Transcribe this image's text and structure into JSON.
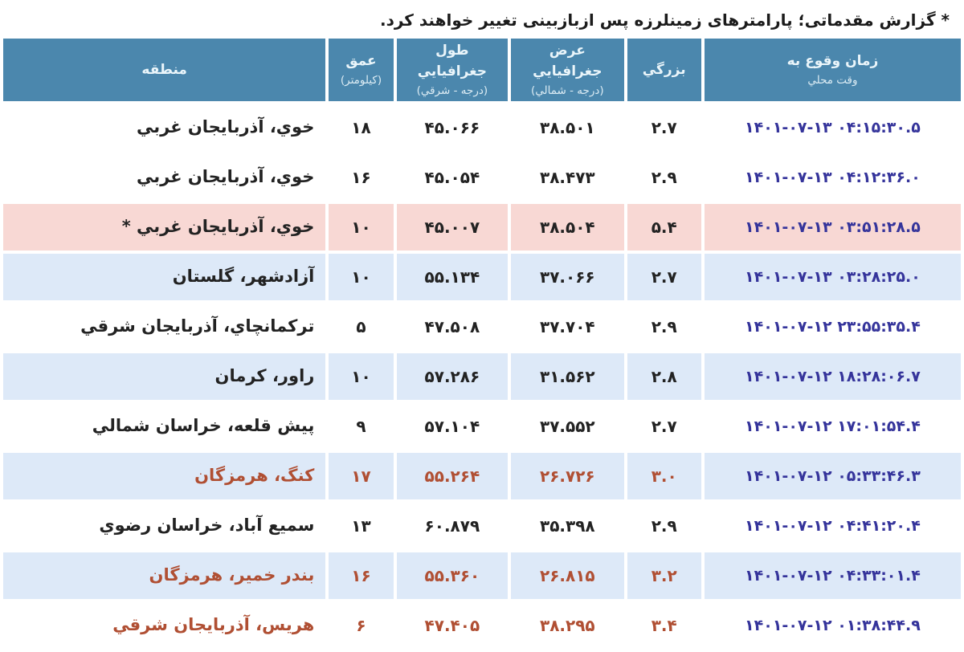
{
  "note": {
    "text": "* گزارش مقدماتی؛ پارامترهای زمینلرزه پس ازبازبینی تغییر خواهند کرد."
  },
  "colors": {
    "header_bg": "#4b87ad",
    "header_text": "#eaf5fa",
    "row_alt_blue": "#dde9f8",
    "row_highlight_pink": "#f8d8d4",
    "datetime_navy": "#35349b",
    "orange_rows_text": "#b04f33",
    "body_text": "#222222"
  },
  "table": {
    "columns": [
      {
        "label": "منطقه",
        "sub": ""
      },
      {
        "label": "عمق",
        "sub": "(کیلومتر)"
      },
      {
        "label": "طول جغرافيايي",
        "sub": "(درجه - شرقي)"
      },
      {
        "label": "عرض جغرافيايي",
        "sub": "(درجه - شمالي)"
      },
      {
        "label": "بزرگي",
        "sub": ""
      },
      {
        "label": "زمان وقوع به",
        "sub": "وقت محلي"
      }
    ],
    "rows": [
      {
        "region": "خوي، آذربايجان غربي",
        "depth": "۱۸",
        "lon": "۴۵.۰۶۶",
        "lat": "۳۸.۵۰۱",
        "mag": "۲.۷",
        "datetime": "۱۴۰۱-۰۷-۱۳  ۰۴:۱۵:۳۰.۵",
        "bg": "white",
        "tone": "normal"
      },
      {
        "region": "خوي، آذربايجان غربي",
        "depth": "۱۶",
        "lon": "۴۵.۰۵۴",
        "lat": "۳۸.۴۷۳",
        "mag": "۲.۹",
        "datetime": "۱۴۰۱-۰۷-۱۳  ۰۴:۱۲:۳۶.۰",
        "bg": "white",
        "tone": "normal"
      },
      {
        "region": "خوي، آذربايجان غربي *",
        "depth": "۱۰",
        "lon": "۴۵.۰۰۷",
        "lat": "۳۸.۵۰۴",
        "mag": "۵.۴",
        "datetime": "۱۴۰۱-۰۷-۱۳  ۰۳:۵۱:۲۸.۵",
        "bg": "pink",
        "tone": "normal"
      },
      {
        "region": "آزادشهر، گلستان",
        "depth": "۱۰",
        "lon": "۵۵.۱۳۴",
        "lat": "۳۷.۰۶۶",
        "mag": "۲.۷",
        "datetime": "۱۴۰۱-۰۷-۱۳  ۰۳:۲۸:۲۵.۰",
        "bg": "blue",
        "tone": "normal"
      },
      {
        "region": "ترکمانچاي، آذربايجان شرقي",
        "depth": "۵",
        "lon": "۴۷.۵۰۸",
        "lat": "۳۷.۷۰۴",
        "mag": "۲.۹",
        "datetime": "۱۴۰۱-۰۷-۱۲  ۲۳:۵۵:۳۵.۴",
        "bg": "white",
        "tone": "normal"
      },
      {
        "region": "راور، کرمان",
        "depth": "۱۰",
        "lon": "۵۷.۲۸۶",
        "lat": "۳۱.۵۶۲",
        "mag": "۲.۸",
        "datetime": "۱۴۰۱-۰۷-۱۲  ۱۸:۲۸:۰۶.۷",
        "bg": "blue",
        "tone": "normal"
      },
      {
        "region": "پيش قلعه، خراسان شمالي",
        "depth": "۹",
        "lon": "۵۷.۱۰۴",
        "lat": "۳۷.۵۵۲",
        "mag": "۲.۷",
        "datetime": "۱۴۰۱-۰۷-۱۲  ۱۷:۰۱:۵۴.۴",
        "bg": "white",
        "tone": "normal"
      },
      {
        "region": "کنگ، هرمزگان",
        "depth": "۱۷",
        "lon": "۵۵.۲۶۴",
        "lat": "۲۶.۷۲۶",
        "mag": "۳.۰",
        "datetime": "۱۴۰۱-۰۷-۱۲  ۰۵:۳۳:۴۶.۳",
        "bg": "blue",
        "tone": "orange"
      },
      {
        "region": "سميع آباد، خراسان رضوي",
        "depth": "۱۳",
        "lon": "۶۰.۸۷۹",
        "lat": "۳۵.۳۹۸",
        "mag": "۲.۹",
        "datetime": "۱۴۰۱-۰۷-۱۲  ۰۴:۴۱:۲۰.۴",
        "bg": "white",
        "tone": "normal"
      },
      {
        "region": "بندر خمير، هرمزگان",
        "depth": "۱۶",
        "lon": "۵۵.۳۶۰",
        "lat": "۲۶.۸۱۵",
        "mag": "۳.۲",
        "datetime": "۱۴۰۱-۰۷-۱۲  ۰۴:۳۳:۰۱.۴",
        "bg": "blue",
        "tone": "orange"
      },
      {
        "region": "هريس، آذربايجان شرقي",
        "depth": "۶",
        "lon": "۴۷.۴۰۵",
        "lat": "۳۸.۲۹۵",
        "mag": "۳.۴",
        "datetime": "۱۴۰۱-۰۷-۱۲  ۰۱:۳۸:۴۴.۹",
        "bg": "white",
        "tone": "orange"
      }
    ]
  }
}
